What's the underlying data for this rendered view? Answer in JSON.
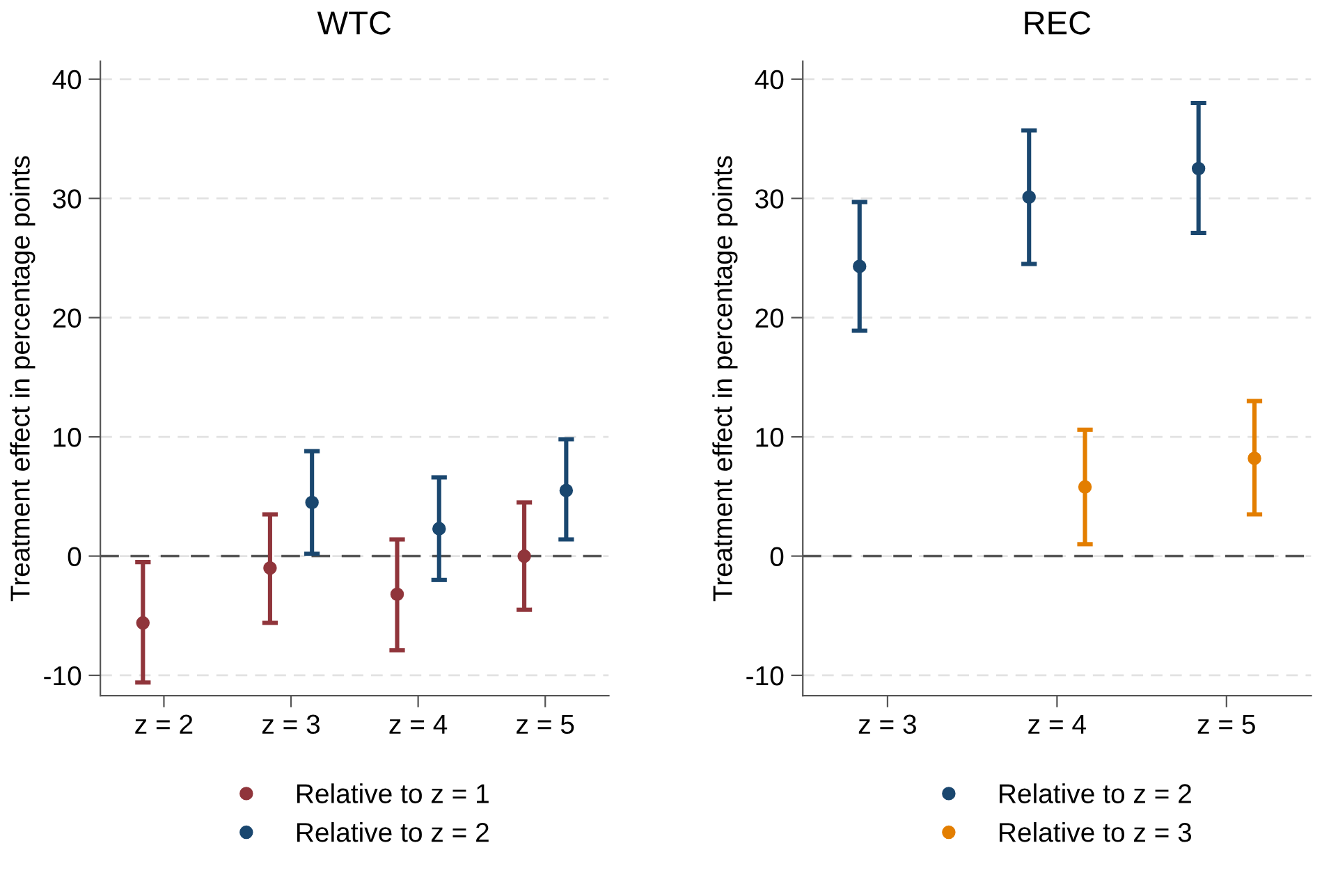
{
  "chart_data": [
    {
      "type": "scatter",
      "title": "WTC",
      "ylabel": "Treatment effect in percentage points",
      "categories": [
        "z = 2",
        "z = 3",
        "z = 4",
        "z = 5"
      ],
      "ylim": [
        -11.7,
        41.5
      ],
      "yticks": [
        -10,
        0,
        10,
        20,
        30,
        40
      ],
      "grid": "y",
      "legend": "bottom",
      "marker": "circle",
      "ref_lines": [
        {
          "axis": "y",
          "value": 0,
          "color": "#555555",
          "line_style": "dashed"
        }
      ],
      "series": [
        {
          "name": "Relative to z = 1",
          "color": "#90353b",
          "values": [
            -5.6,
            -1.0,
            -3.2,
            0.0
          ],
          "errors": [
            [
              -10.6,
              -0.5
            ],
            [
              -5.6,
              3.5
            ],
            [
              -7.9,
              1.4
            ],
            [
              -4.5,
              4.5
            ]
          ]
        },
        {
          "name": "Relative to z = 2",
          "color": "#1a476f",
          "values": [
            null,
            4.5,
            2.3,
            5.5
          ],
          "errors": [
            null,
            [
              0.2,
              8.8
            ],
            [
              -2.0,
              6.6
            ],
            [
              1.4,
              9.8
            ]
          ]
        }
      ]
    },
    {
      "type": "scatter",
      "title": "REC",
      "ylabel": "Treatment effect in percentage points",
      "categories": [
        "z = 3",
        "z = 4",
        "z = 5"
      ],
      "ylim": [
        -11.7,
        41.5
      ],
      "yticks": [
        -10,
        0,
        10,
        20,
        30,
        40
      ],
      "grid": "y",
      "legend": "bottom",
      "marker": "circle",
      "ref_lines": [
        {
          "axis": "y",
          "value": 0,
          "color": "#555555",
          "line_style": "dashed"
        }
      ],
      "series": [
        {
          "name": "Relative to z = 2",
          "color": "#1a476f",
          "values": [
            24.3,
            30.1,
            32.5
          ],
          "errors": [
            [
              18.9,
              29.7
            ],
            [
              24.5,
              35.7
            ],
            [
              27.1,
              38.0
            ]
          ]
        },
        {
          "name": "Relative to z = 3",
          "color": "#e37e00",
          "values": [
            null,
            5.8,
            8.2
          ],
          "errors": [
            null,
            [
              1.0,
              10.6
            ],
            [
              3.5,
              13.0
            ]
          ]
        }
      ]
    }
  ]
}
